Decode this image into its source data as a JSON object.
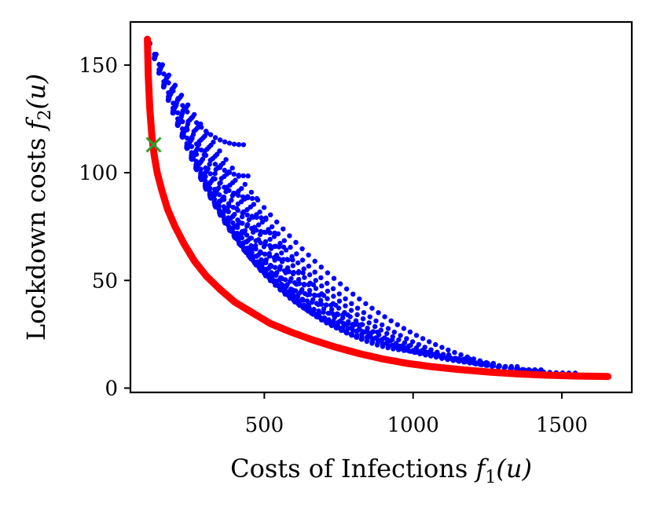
{
  "chart_data": {
    "type": "scatter",
    "title": "",
    "xlabel": {
      "text": "Costs of Infections ",
      "math": "f",
      "sub": "1",
      "arg": "(u)"
    },
    "ylabel": {
      "text": "Lockdown costs ",
      "math": "f",
      "sub": "2",
      "arg": "(u)"
    },
    "xlim": [
      50,
      1735
    ],
    "ylim": [
      -2,
      170
    ],
    "x_ticks": [
      500,
      1000,
      1500
    ],
    "x_tick_labels": [
      "500",
      "1000",
      "1500"
    ],
    "y_ticks": [
      0,
      50,
      100,
      150
    ],
    "y_tick_labels": [
      "0",
      "50",
      "100",
      "150"
    ],
    "grid": false,
    "legend": "none",
    "colors": {
      "points": "#0000ff",
      "front": "#ff0000",
      "selected": "#2ca02c"
    },
    "series": [
      {
        "kind": "points",
        "note_families": "blue dots: trade-off families fanning from near (115,160)",
        "families": [
          {
            "end": [
              430,
              113
            ],
            "count": 20
          },
          {
            "end": [
              445,
              98.5
            ],
            "count": 21
          },
          {
            "end": [
              475,
              88
            ],
            "count": 23
          },
          {
            "end": [
              505,
              79
            ],
            "count": 25
          },
          {
            "end": [
              535,
              72
            ],
            "count": 27
          },
          {
            "end": [
              565,
              65.5
            ],
            "count": 29
          },
          {
            "end": [
              595,
              59.5
            ],
            "count": 31
          },
          {
            "end": [
              630,
              53.5
            ],
            "count": 33
          },
          {
            "end": [
              665,
              48
            ],
            "count": 35
          },
          {
            "end": [
              700,
              43
            ],
            "count": 37
          },
          {
            "end": [
              740,
              38.5
            ],
            "count": 39
          },
          {
            "end": [
              780,
              34
            ],
            "count": 41
          },
          {
            "end": [
              830,
              29.5
            ],
            "count": 44
          },
          {
            "end": [
              880,
              26
            ],
            "count": 46
          },
          {
            "end": [
              930,
              22.5
            ],
            "count": 48
          },
          {
            "end": [
              985,
              19.5
            ],
            "count": 50
          },
          {
            "end": [
              1040,
              17
            ],
            "count": 52
          },
          {
            "end": [
              1120,
              15.5
            ],
            "count": 55
          },
          {
            "end": [
              1190,
              13.5
            ],
            "count": 58
          },
          {
            "end": [
              1270,
              11.5
            ],
            "count": 60
          },
          {
            "end": [
              1350,
              10
            ],
            "count": 62
          },
          {
            "end": [
              1430,
              8.5
            ],
            "count": 64
          },
          {
            "end": [
              1545,
              7
            ],
            "count": 67
          }
        ],
        "start": [
          115,
          160
        ]
      },
      {
        "kind": "front",
        "points": [
          [
            107,
            162
          ],
          [
            110,
            145
          ],
          [
            115,
            130
          ],
          [
            122,
            117
          ],
          [
            130,
            108
          ],
          [
            140,
            100
          ],
          [
            155,
            92
          ],
          [
            175,
            83
          ],
          [
            200,
            75
          ],
          [
            230,
            67
          ],
          [
            265,
            59
          ],
          [
            305,
            52
          ],
          [
            350,
            46
          ],
          [
            400,
            40
          ],
          [
            460,
            35
          ],
          [
            520,
            30
          ],
          [
            590,
            26
          ],
          [
            660,
            22.5
          ],
          [
            740,
            19
          ],
          [
            820,
            16
          ],
          [
            900,
            13.5
          ],
          [
            980,
            11.5
          ],
          [
            1060,
            10
          ],
          [
            1150,
            8.7
          ],
          [
            1250,
            7.5
          ],
          [
            1350,
            6.6
          ],
          [
            1450,
            6.0
          ],
          [
            1550,
            5.6
          ],
          [
            1655,
            5.4
          ]
        ]
      },
      {
        "kind": "selected",
        "point": [
          128,
          113
        ]
      }
    ]
  }
}
